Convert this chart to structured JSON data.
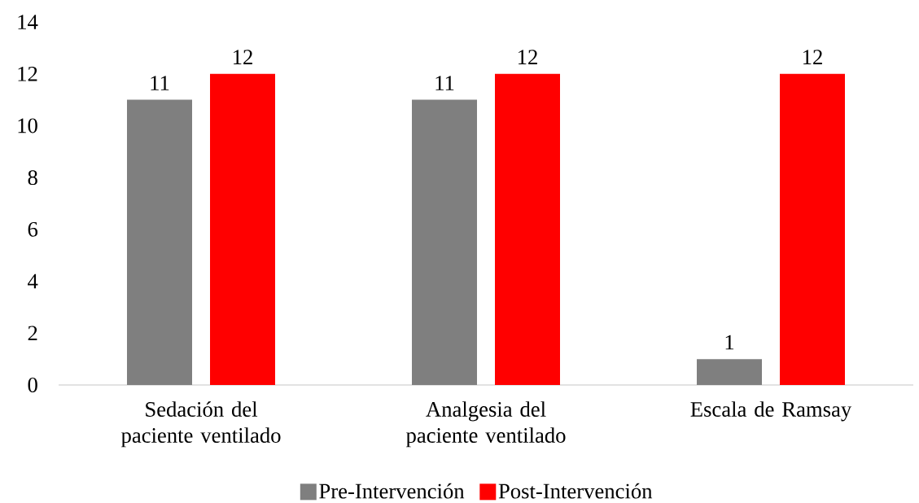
{
  "chart_data": {
    "type": "bar",
    "categories": [
      "Sedación del paciente ventilado",
      "Analgesia del paciente ventilado",
      "Escala de Ramsay"
    ],
    "series": [
      {
        "name": "Pre-Intervención",
        "color": "#7f7f7f",
        "values": [
          11,
          11,
          1
        ]
      },
      {
        "name": "Post-Intervención",
        "color": "#ff0000",
        "values": [
          12,
          12,
          12
        ]
      }
    ],
    "ylim": [
      0,
      14
    ],
    "yticks": [
      0,
      2,
      4,
      6,
      8,
      10,
      12,
      14
    ],
    "data_labels": true,
    "legend": "bottom",
    "grid": false
  }
}
